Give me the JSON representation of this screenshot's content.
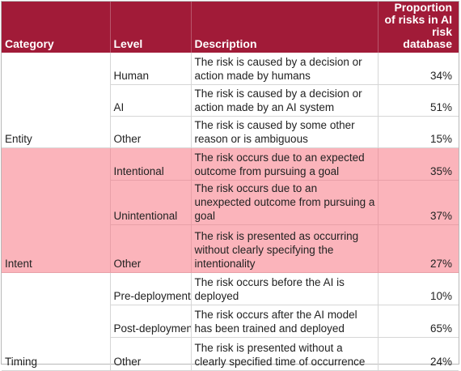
{
  "header": {
    "category": "Category",
    "level": "Level",
    "description": "Description",
    "proportion": "Proportion of risks in AI risk database"
  },
  "rows": [
    {
      "category": "",
      "level": "Human",
      "description": "The risk is caused by a decision or action made by humans",
      "proportion": "34%"
    },
    {
      "category": "",
      "level": "AI",
      "description": "The risk is caused by a decision or action made by an AI system",
      "proportion": "51%"
    },
    {
      "category": "Entity",
      "level": "Other",
      "description": "The risk is caused by some other reason or is ambiguous",
      "proportion": "15%"
    },
    {
      "category": "",
      "level": "Intentional",
      "description": "The risk occurs due to an expected outcome from pursuing a goal",
      "proportion": "35%"
    },
    {
      "category": "",
      "level": "Unintentional",
      "description": "The risk occurs due to an unexpected outcome from pursuing a goal",
      "proportion": "37%"
    },
    {
      "category": "Intent",
      "level": "Other",
      "description": "The risk is presented as occurring without clearly specifying the intentionality",
      "proportion": "27%"
    },
    {
      "category": "",
      "level": "Pre-deployment",
      "description": "The risk occurs before the AI is deployed",
      "proportion": "10%"
    },
    {
      "category": "",
      "level": "Post-deploymen",
      "description": "The risk occurs after the AI model has been trained and deployed",
      "proportion": "65%"
    },
    {
      "category": "Timing",
      "level": "Other",
      "description": "The risk is presented without a clearly specified time of occurrence",
      "proportion": "24%"
    }
  ],
  "colors": {
    "header_bg": "#a11b38",
    "highlight_bg": "#fbb4bb"
  }
}
